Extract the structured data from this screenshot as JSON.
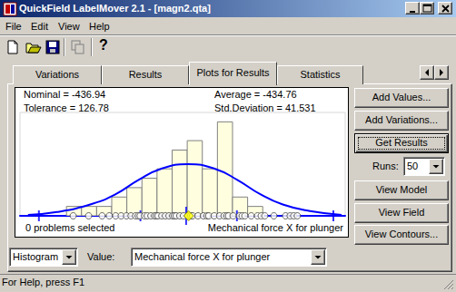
{
  "window": {
    "title": "QuickField LabelMover 2.1 - [magn2.qta]",
    "menu": [
      "File",
      "Edit",
      "View",
      "Help"
    ],
    "help_icon": "?",
    "status": "For Help, press F1"
  },
  "tabs": {
    "items": [
      "Variations",
      "Results",
      "Plots for Results",
      "Statistics"
    ],
    "active": 2
  },
  "stats": {
    "nominal": "Nominal = -436.94",
    "tolerance": "Tolerance = 126.78",
    "average": "Average = -434.76",
    "std": "Std.Deviation = 41.531"
  },
  "chart_data": {
    "type": "histogram",
    "bins": [
      -540,
      -527,
      -514,
      -501,
      -488,
      -475,
      -462,
      -449,
      -436,
      -423,
      -410,
      -397,
      -384,
      -371
    ],
    "counts": [
      1,
      1,
      1,
      2,
      3,
      4,
      5,
      7,
      8,
      5,
      10,
      2,
      1
    ],
    "color": "#ffffe0",
    "xlim": [
      -580,
      -300
    ],
    "ylim": [
      0,
      11
    ],
    "grid": false,
    "tick_labels": false,
    "fit": {
      "type": "line",
      "color": "#0000ff",
      "x": [
        -573.1,
        -548.2,
        -517.1,
        -497.6,
        -478.2,
        -458.7,
        -435.4,
        -412.0,
        -392.6,
        -373.1,
        -353.7,
        -330.3,
        -303.1
      ],
      "values": [
        0.1,
        0.4,
        1.3,
        2.3,
        3.8,
        5.0,
        5.5,
        5.0,
        3.8,
        2.3,
        1.2,
        0.5,
        0.1
      ]
    },
    "limits": [
      -563.72,
      -476.29,
      -393.23,
      -310.16
    ],
    "nominal_marker": -436.94,
    "average_marker": {
      "value": -434.76,
      "marker": "diamond",
      "color": "#ffff00"
    },
    "runs": {
      "marker": "circle",
      "x": [
        -534.2,
        -520.9,
        -509.3,
        -503.1,
        -497.6,
        -492.9,
        -488.3,
        -484.4,
        -480.5,
        -478.2,
        -476.6,
        -472.7,
        -470.4,
        -467.3,
        -464.2,
        -462.6,
        -461.1,
        -457.9,
        -454.8,
        -451.7,
        -448.6,
        -447.1,
        -445.5,
        -442.4,
        -439.3,
        -435.4,
        -433.0,
        -431.5,
        -426.8,
        -422.1,
        -419.0,
        -417.5,
        -412.8,
        -408.1,
        -404.3,
        -401.9,
        -400.4,
        -396.5,
        -391.0,
        -388.7,
        -386.4,
        -380.9,
        -375.5,
        -372.3,
        -369.2,
        -361.4,
        -351.3,
        -347.4,
        -344.3,
        -341.2
      ]
    },
    "caption_left": "0 problems selected",
    "caption_right": "Mechanical force X for plunger"
  },
  "controls": {
    "buttons": [
      "Add Values...",
      "Add Variations...",
      "Get Results",
      "View Model",
      "View Field",
      "View Contours..."
    ],
    "runs_label": "Runs:",
    "runs_value": 50,
    "plot_kind": "Histogram",
    "value_label": "Value:",
    "value": "Mechanical force X for plunger"
  }
}
